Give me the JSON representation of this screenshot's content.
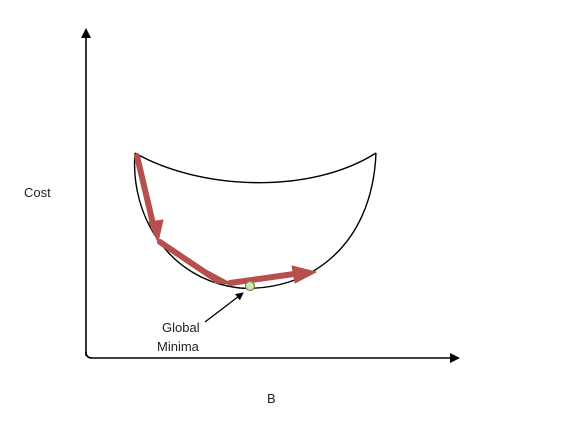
{
  "labels": {
    "y_axis": "Cost",
    "x_axis": "B",
    "annotation_line1": "Global",
    "annotation_line2": "Minima"
  },
  "colors": {
    "axis": "#000000",
    "curve": "#000000",
    "step_arrows": "#b5504f",
    "minimum_point_fill": "#cfe3b4",
    "minimum_point_stroke": "#6f8f4e",
    "label_text": "#222222"
  }
}
